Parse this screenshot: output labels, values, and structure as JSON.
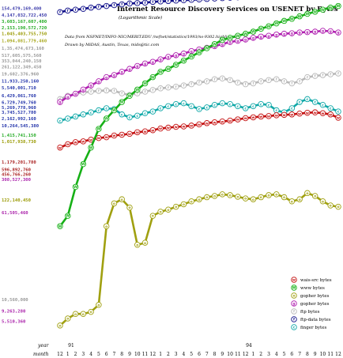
{
  "chart_data": {
    "type": "line",
    "title": "Internet Resource Discovery Services on USENET by Bytes",
    "subtitle": "(Logarithmic Scale)",
    "notes": [
      "Data from NSFNET/INFO-NIC/MERIT.EDU /nsfnet/statistics/1993/ns-9302.highlights",
      "Drawn by MiDAS, Austin, Texas, mids@tic.com"
    ],
    "xlabel": "year",
    "x_row2_label": "month",
    "year_labels": [
      {
        "label": "91",
        "index": 0
      },
      {
        "label": "94",
        "index": 23
      }
    ],
    "x": [
      "12",
      "1",
      "2",
      "3",
      "4",
      "5",
      "6",
      "7",
      "8",
      "9",
      "10",
      "11",
      "12",
      "1",
      "2",
      "3",
      "4",
      "5",
      "6",
      "7",
      "8",
      "9",
      "10",
      "11",
      "12",
      "1",
      "2",
      "3",
      "4",
      "5",
      "6",
      "7",
      "8",
      "9",
      "10",
      "11",
      "12"
    ],
    "ylim": [
      5,
      13
    ],
    "ytick_labels": [
      {
        "label": "154,479,169,400",
        "level": 12.91,
        "color": "#3a3aaa"
      },
      {
        "label": "4,147,032,722,450",
        "level": 12.75,
        "color": "#3a3aaa"
      },
      {
        "label": "3,603,167,607,400",
        "level": 12.6,
        "color": "#22aa22"
      },
      {
        "label": "2,153,190,572,720",
        "level": 12.45,
        "color": "#22aa22"
      },
      {
        "label": "1,045,403,755,750",
        "level": 12.3,
        "color": "#999900"
      },
      {
        "label": "1,094,081,779,460",
        "level": 12.13,
        "color": "#aaaa22"
      },
      {
        "label": "1,35,474,673,160",
        "level": 11.95,
        "color": "#999999"
      },
      {
        "label": "517,605,575,560",
        "level": 11.78,
        "color": "#999999"
      },
      {
        "label": "353,044,240,150",
        "level": 11.64,
        "color": "#999999"
      },
      {
        "label": "261,122,349,450",
        "level": 11.5,
        "color": "#999999"
      },
      {
        "label": "19,602,376,960",
        "level": 11.33,
        "color": "#999999"
      },
      {
        "label": "11,933,250,160",
        "level": 11.16,
        "color": "#2233aa"
      },
      {
        "label": "5,540,001,710",
        "level": 11.0,
        "color": "#2233aa"
      },
      {
        "label": "6,429,061,760",
        "level": 10.8,
        "color": "#2233aa"
      },
      {
        "label": "6,729,749,760",
        "level": 10.64,
        "color": "#2233aa"
      },
      {
        "label": "5,269,778,960",
        "level": 10.52,
        "color": "#2233aa"
      },
      {
        "label": "3,745,527,780",
        "level": 10.4,
        "color": "#2233aa"
      },
      {
        "label": "2,162,992,160",
        "level": 10.25,
        "color": "#2233aa"
      },
      {
        "label": "10,264,545,380",
        "level": 10.08,
        "color": "#2233aa"
      },
      {
        "label": "1,415,741,150",
        "level": 9.85,
        "color": "#22aa22"
      },
      {
        "label": "1,017,938,730",
        "level": 9.7,
        "color": "#999900"
      },
      {
        "label": "1,179,201,780",
        "level": 9.2,
        "color": "#aa2222"
      },
      {
        "label": "596,892,760",
        "level": 9.02,
        "color": "#aa2222"
      },
      {
        "label": "456,766,260",
        "level": 8.9,
        "color": "#aa2222"
      },
      {
        "label": "308,527,300",
        "level": 8.78,
        "color": "#aa22aa"
      },
      {
        "label": "122,140,450",
        "level": 8.28,
        "color": "#999900"
      },
      {
        "label": "61,505,460",
        "level": 7.98,
        "color": "#aa22aa"
      },
      {
        "label": "10,560,000",
        "level": 5.88,
        "color": "#999999"
      },
      {
        "label": "9,263,280",
        "level": 5.6,
        "color": "#aa22aa"
      },
      {
        "label": "5,510,360",
        "level": 5.35,
        "color": "#aa22aa"
      }
    ],
    "grid": false,
    "legend_position": "bottom-right",
    "series": [
      {
        "name": "wais-src bytes",
        "marker": "w",
        "color": "#c41010",
        "values": [
          9.55,
          9.63,
          9.68,
          9.7,
          9.74,
          9.78,
          9.8,
          9.84,
          9.86,
          9.88,
          9.92,
          9.94,
          9.97,
          10.01,
          10.03,
          10.05,
          10.06,
          10.08,
          10.11,
          10.14,
          10.16,
          10.18,
          10.2,
          10.23,
          10.26,
          10.28,
          10.3,
          10.31,
          10.33,
          10.34,
          10.35,
          10.37,
          10.39,
          10.4,
          10.38,
          10.35,
          10.27
        ]
      },
      {
        "name": "www bytes",
        "marker": "W",
        "color": "#16b016",
        "values": [
          7.65,
          7.9,
          8.6,
          9.15,
          9.55,
          10.0,
          10.25,
          10.45,
          10.65,
          10.8,
          10.95,
          11.1,
          11.25,
          11.38,
          11.45,
          11.55,
          11.65,
          11.75,
          11.85,
          11.95,
          12.05,
          12.15,
          12.2,
          12.25,
          12.3,
          12.35,
          12.42,
          12.48,
          12.55,
          12.61,
          12.66,
          12.72,
          12.78,
          12.83,
          12.88,
          12.93,
          12.97
        ]
      },
      {
        "name": "gopher bytes",
        "marker": "o",
        "color": "#a0a010",
        "values": [
          5.25,
          5.42,
          5.53,
          5.53,
          5.58,
          5.75,
          7.65,
          8.2,
          8.3,
          8.1,
          7.2,
          7.25,
          7.9,
          8.0,
          8.05,
          8.12,
          8.18,
          8.25,
          8.3,
          8.35,
          8.38,
          8.42,
          8.4,
          8.36,
          8.32,
          8.3,
          8.35,
          8.4,
          8.42,
          8.35,
          8.25,
          8.3,
          8.45,
          8.38,
          8.25,
          8.15,
          8.12
        ]
      },
      {
        "name": "gopher bytes",
        "marker": "g",
        "color": "#b020b0",
        "values": [
          10.65,
          10.78,
          10.85,
          10.95,
          11.05,
          11.15,
          11.25,
          11.3,
          11.38,
          11.45,
          11.52,
          11.58,
          11.62,
          11.68,
          11.74,
          11.78,
          11.82,
          11.88,
          11.92,
          11.96,
          12.0,
          12.05,
          12.1,
          12.13,
          12.16,
          12.2,
          12.23,
          12.25,
          12.28,
          12.3,
          12.31,
          12.33,
          12.34,
          12.35,
          12.37,
          12.36,
          12.33
        ]
      },
      {
        "name": "ftp bytes",
        "marker": "f",
        "color": "#b8b8b8",
        "values": [
          10.72,
          10.8,
          10.85,
          10.88,
          10.9,
          10.92,
          10.93,
          10.92,
          10.86,
          10.82,
          10.86,
          10.9,
          10.94,
          10.98,
          11.0,
          11.02,
          11.05,
          11.08,
          11.12,
          11.15,
          11.2,
          11.22,
          11.18,
          11.12,
          11.08,
          11.1,
          11.15,
          11.18,
          11.2,
          11.15,
          11.1,
          11.15,
          11.25,
          11.28,
          11.3,
          11.32,
          11.34
        ]
      },
      {
        "name": "ftp-data bytes",
        "marker": "f",
        "color": "#10108a",
        "values": [
          12.82,
          12.86,
          12.88,
          12.9,
          12.93,
          12.95,
          12.97,
          12.99,
          13.01,
          13.03,
          13.04,
          13.05,
          13.07,
          13.08,
          13.09,
          13.1,
          13.11,
          13.12,
          13.13,
          13.14,
          13.15,
          13.16,
          13.17,
          13.18,
          13.19,
          13.2,
          13.21,
          13.22,
          13.23,
          13.24,
          13.25,
          13.25,
          13.26,
          13.27,
          13.28,
          13.29,
          13.3
        ]
      },
      {
        "name": "finger bytes",
        "marker": "c",
        "color": "#10a8a8",
        "values": [
          10.2,
          10.25,
          10.3,
          10.35,
          10.4,
          10.45,
          10.5,
          10.48,
          10.35,
          10.28,
          10.32,
          10.38,
          10.42,
          10.5,
          10.55,
          10.6,
          10.62,
          10.55,
          10.48,
          10.52,
          10.58,
          10.62,
          10.6,
          10.55,
          10.5,
          10.55,
          10.6,
          10.58,
          10.45,
          10.4,
          10.5,
          10.65,
          10.72,
          10.65,
          10.58,
          10.5,
          10.42
        ]
      }
    ],
    "legend": [
      {
        "label": "wais-src bytes",
        "color": "#c41010",
        "marker": "w"
      },
      {
        "label": "www bytes",
        "color": "#16b016",
        "marker": "W"
      },
      {
        "label": "gopher bytes",
        "color": "#a0a010",
        "marker": "o"
      },
      {
        "label": "gopher bytes",
        "color": "#b020b0",
        "marker": "g"
      },
      {
        "label": "ftp bytes",
        "color": "#b8b8b8",
        "marker": "f"
      },
      {
        "label": "ftp-data bytes",
        "color": "#10108a",
        "marker": "f"
      },
      {
        "label": "finger bytes",
        "color": "#10a8a8",
        "marker": "c"
      }
    ]
  }
}
